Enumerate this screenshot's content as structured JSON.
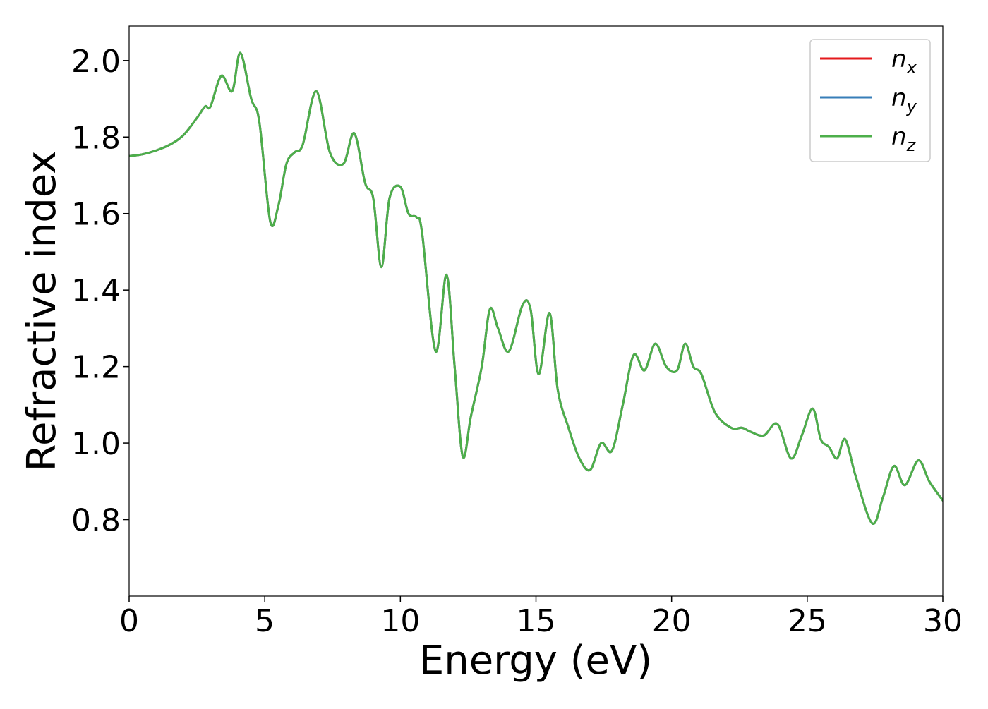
{
  "chart_data": {
    "type": "line",
    "title": "",
    "xlabel": "Energy (eV)",
    "ylabel": "Refractive index",
    "xlim": [
      0,
      30
    ],
    "ylim": [
      0.6,
      2.09
    ],
    "xticks": [
      0,
      5,
      10,
      15,
      20,
      25,
      30
    ],
    "xtick_labels": [
      "0",
      "5",
      "10",
      "15",
      "20",
      "25",
      "30"
    ],
    "yticks": [
      0.8,
      1.0,
      1.2,
      1.4,
      1.6,
      1.8,
      2.0
    ],
    "ytick_labels": [
      "0.8",
      "1.0",
      "1.2",
      "1.4",
      "1.6",
      "1.8",
      "2.0"
    ],
    "grid": false,
    "legend": {
      "position": "top-right",
      "entries": [
        {
          "base": "n",
          "sub": "x",
          "color": "#e41a1c"
        },
        {
          "base": "n",
          "sub": "y",
          "color": "#377eb8"
        },
        {
          "base": "n",
          "sub": "z",
          "color": "#4daf4a"
        }
      ]
    },
    "x": [
      0,
      0.5,
      1,
      1.5,
      2,
      2.5,
      2.8,
      3.0,
      3.4,
      3.8,
      4.1,
      4.5,
      4.8,
      5.2,
      5.5,
      5.8,
      6.1,
      6.4,
      6.9,
      7.4,
      7.9,
      8.3,
      8.7,
      9.0,
      9.3,
      9.6,
      10.0,
      10.3,
      10.6,
      10.8,
      11.3,
      11.7,
      12.0,
      12.3,
      12.6,
      13.0,
      13.3,
      13.6,
      14.0,
      14.5,
      14.8,
      15.1,
      15.5,
      15.8,
      16.2,
      16.6,
      17.0,
      17.4,
      17.8,
      18.2,
      18.6,
      19.0,
      19.4,
      19.8,
      20.2,
      20.5,
      20.8,
      21.1,
      21.6,
      22.2,
      22.6,
      22.9,
      23.4,
      23.9,
      24.4,
      24.8,
      25.2,
      25.5,
      25.8,
      26.1,
      26.4,
      26.8,
      27.4,
      27.8,
      28.2,
      28.6,
      29.1,
      29.5,
      30.0
    ],
    "series": [
      {
        "name": "n_x",
        "color": "#e41a1c",
        "values": [
          1.75,
          1.755,
          1.765,
          1.78,
          1.805,
          1.85,
          1.88,
          1.88,
          1.96,
          1.92,
          2.02,
          1.9,
          1.84,
          1.58,
          1.62,
          1.73,
          1.76,
          1.78,
          1.92,
          1.76,
          1.73,
          1.81,
          1.68,
          1.64,
          1.46,
          1.64,
          1.67,
          1.6,
          1.59,
          1.55,
          1.24,
          1.44,
          1.2,
          0.965,
          1.07,
          1.2,
          1.35,
          1.3,
          1.24,
          1.36,
          1.35,
          1.18,
          1.34,
          1.14,
          1.04,
          0.96,
          0.93,
          1.0,
          0.98,
          1.1,
          1.23,
          1.19,
          1.26,
          1.2,
          1.19,
          1.26,
          1.2,
          1.18,
          1.08,
          1.04,
          1.04,
          1.03,
          1.02,
          1.05,
          0.96,
          1.02,
          1.09,
          1.01,
          0.99,
          0.96,
          1.01,
          0.91,
          0.79,
          0.86,
          0.94,
          0.89,
          0.955,
          0.9,
          0.85
        ]
      },
      {
        "name": "n_y",
        "color": "#377eb8",
        "values": [
          1.75,
          1.755,
          1.765,
          1.78,
          1.805,
          1.85,
          1.88,
          1.88,
          1.96,
          1.92,
          2.02,
          1.9,
          1.84,
          1.58,
          1.62,
          1.73,
          1.76,
          1.78,
          1.92,
          1.76,
          1.73,
          1.81,
          1.68,
          1.64,
          1.46,
          1.64,
          1.67,
          1.6,
          1.59,
          1.55,
          1.24,
          1.44,
          1.2,
          0.965,
          1.07,
          1.2,
          1.35,
          1.3,
          1.24,
          1.36,
          1.35,
          1.18,
          1.34,
          1.14,
          1.04,
          0.96,
          0.93,
          1.0,
          0.98,
          1.1,
          1.23,
          1.19,
          1.26,
          1.2,
          1.19,
          1.26,
          1.2,
          1.18,
          1.08,
          1.04,
          1.04,
          1.03,
          1.02,
          1.05,
          0.96,
          1.02,
          1.09,
          1.01,
          0.99,
          0.96,
          1.01,
          0.91,
          0.79,
          0.86,
          0.94,
          0.89,
          0.955,
          0.9,
          0.85
        ]
      },
      {
        "name": "n_z",
        "color": "#4daf4a",
        "values": [
          1.75,
          1.755,
          1.765,
          1.78,
          1.805,
          1.85,
          1.88,
          1.88,
          1.96,
          1.92,
          2.02,
          1.9,
          1.84,
          1.58,
          1.62,
          1.73,
          1.76,
          1.78,
          1.92,
          1.76,
          1.73,
          1.81,
          1.68,
          1.64,
          1.46,
          1.64,
          1.67,
          1.6,
          1.59,
          1.55,
          1.24,
          1.44,
          1.2,
          0.965,
          1.07,
          1.2,
          1.35,
          1.3,
          1.24,
          1.36,
          1.35,
          1.18,
          1.34,
          1.14,
          1.04,
          0.96,
          0.93,
          1.0,
          0.98,
          1.1,
          1.23,
          1.19,
          1.26,
          1.2,
          1.19,
          1.26,
          1.2,
          1.18,
          1.08,
          1.04,
          1.04,
          1.03,
          1.02,
          1.05,
          0.96,
          1.02,
          1.09,
          1.01,
          0.99,
          0.96,
          1.01,
          0.91,
          0.79,
          0.86,
          0.94,
          0.89,
          0.955,
          0.9,
          0.85
        ]
      }
    ]
  }
}
